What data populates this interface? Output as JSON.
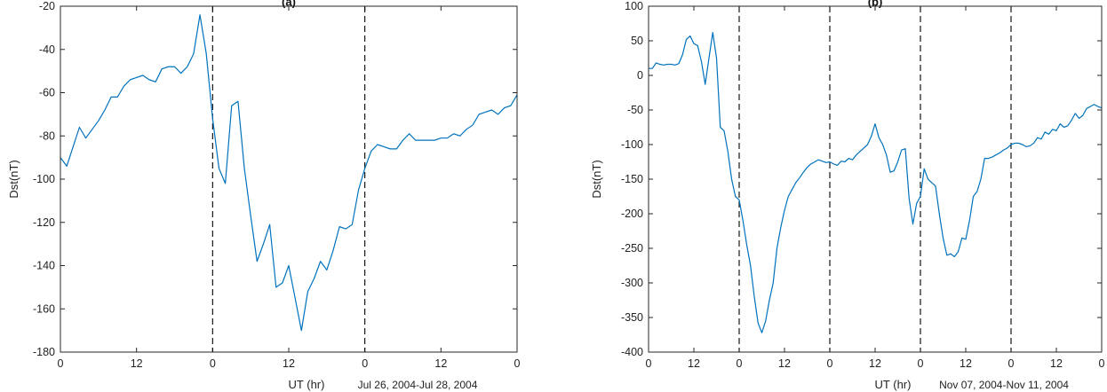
{
  "colors": {
    "line": "#0072BD",
    "axis": "#262626",
    "vline": "#000000"
  },
  "chart_data": [
    {
      "type": "line",
      "title": "(a)",
      "xlabel": "UT (hr)",
      "ylabel": "Dst(nT)",
      "date_range": "Jul 26, 2004-Jul 28, 2004",
      "xlim": [
        0,
        72
      ],
      "ylim": [
        -180,
        -20
      ],
      "yticks": [
        -20,
        -40,
        -60,
        -80,
        -100,
        -120,
        -140,
        -160,
        -180
      ],
      "xticks": [
        0,
        12,
        24,
        36,
        48,
        60,
        72
      ],
      "xtick_labels": [
        "0",
        "12",
        "0",
        "12",
        "0",
        "12",
        "0"
      ],
      "vlines": [
        24,
        48
      ],
      "x": [
        0,
        1,
        2,
        3,
        4,
        5,
        6,
        7,
        8,
        9,
        10,
        11,
        12,
        13,
        14,
        15,
        16,
        17,
        18,
        19,
        20,
        21,
        22,
        23,
        24,
        25,
        26,
        27,
        28,
        29,
        30,
        31,
        32,
        33,
        34,
        35,
        36,
        37,
        38,
        39,
        40,
        41,
        42,
        43,
        44,
        45,
        46,
        47,
        48,
        49,
        50,
        51,
        52,
        53,
        54,
        55,
        56,
        57,
        58,
        59,
        60,
        61,
        62,
        63,
        64,
        65,
        66,
        67,
        68,
        69,
        70,
        71,
        72
      ],
      "y": [
        -90,
        -94,
        -85,
        -76,
        -81,
        -77,
        -73,
        -68,
        -62,
        -62,
        -57,
        -54,
        -53,
        -52,
        -54,
        -55,
        -49,
        -48,
        -48,
        -51,
        -48,
        -42,
        -24,
        -42,
        -72,
        -95,
        -102,
        -66,
        -64,
        -95,
        -117,
        -138,
        -130,
        -121,
        -150,
        -148,
        -140,
        -155,
        -170,
        -152,
        -146,
        -138,
        -142,
        -133,
        -122,
        -123,
        -121,
        -105,
        -95,
        -87,
        -84,
        -85,
        -86,
        -86,
        -82,
        -79,
        -82,
        -82,
        -82,
        -82,
        -81,
        -81,
        -79,
        -80,
        -77,
        -75,
        -70,
        -69,
        -68,
        -70,
        -67,
        -66,
        -61
      ]
    },
    {
      "type": "line",
      "title": "(b)",
      "xlabel": "UT (hr)",
      "ylabel": "Dst(nT)",
      "date_range": "Nov 07, 2004-Nov 11, 2004",
      "xlim": [
        0,
        120
      ],
      "ylim": [
        -400,
        100
      ],
      "yticks": [
        100,
        50,
        0,
        -50,
        -100,
        -150,
        -200,
        -250,
        -300,
        -350,
        -400
      ],
      "xticks": [
        0,
        12,
        24,
        36,
        48,
        60,
        72,
        84,
        96,
        108,
        120
      ],
      "xtick_labels": [
        "0",
        "12",
        "0",
        "12",
        "0",
        "12",
        "0",
        "12",
        "0",
        "12",
        "0"
      ],
      "vlines": [
        24,
        48,
        72,
        96
      ],
      "x": [
        0,
        1,
        2,
        3,
        4,
        5,
        6,
        7,
        8,
        9,
        10,
        11,
        12,
        13,
        14,
        15,
        16,
        17,
        18,
        19,
        20,
        21,
        22,
        23,
        24,
        25,
        26,
        27,
        28,
        29,
        30,
        31,
        32,
        33,
        34,
        35,
        36,
        37,
        38,
        39,
        40,
        41,
        42,
        43,
        44,
        45,
        46,
        47,
        48,
        49,
        50,
        51,
        52,
        53,
        54,
        55,
        56,
        57,
        58,
        59,
        60,
        61,
        62,
        63,
        64,
        65,
        66,
        67,
        68,
        69,
        70,
        71,
        72,
        73,
        74,
        75,
        76,
        77,
        78,
        79,
        80,
        81,
        82,
        83,
        84,
        85,
        86,
        87,
        88,
        89,
        90,
        91,
        92,
        93,
        94,
        95,
        96,
        97,
        98,
        99,
        100,
        101,
        102,
        103,
        104,
        105,
        106,
        107,
        108,
        109,
        110,
        111,
        112,
        113,
        114,
        115,
        116,
        117,
        118,
        119,
        120
      ],
      "y": [
        10,
        10,
        18,
        16,
        15,
        16,
        16,
        15,
        17,
        30,
        52,
        57,
        46,
        43,
        20,
        -13,
        25,
        62,
        25,
        -75,
        -80,
        -110,
        -150,
        -175,
        -180,
        -210,
        -245,
        -275,
        -320,
        -358,
        -372,
        -355,
        -325,
        -300,
        -250,
        -220,
        -195,
        -175,
        -165,
        -155,
        -148,
        -140,
        -133,
        -128,
        -125,
        -122,
        -124,
        -126,
        -125,
        -128,
        -130,
        -124,
        -125,
        -120,
        -122,
        -115,
        -110,
        -105,
        -100,
        -88,
        -70,
        -90,
        -100,
        -115,
        -140,
        -138,
        -125,
        -108,
        -106,
        -178,
        -215,
        -185,
        -175,
        -135,
        -150,
        -155,
        -160,
        -200,
        -235,
        -260,
        -258,
        -262,
        -255,
        -235,
        -237,
        -210,
        -175,
        -168,
        -150,
        -120,
        -120,
        -118,
        -115,
        -112,
        -108,
        -105,
        -100,
        -98,
        -98,
        -100,
        -103,
        -102,
        -98,
        -90,
        -92,
        -82,
        -85,
        -78,
        -80,
        -70,
        -75,
        -73,
        -65,
        -55,
        -62,
        -58,
        -48,
        -45,
        -42,
        -45,
        -47
      ]
    }
  ]
}
